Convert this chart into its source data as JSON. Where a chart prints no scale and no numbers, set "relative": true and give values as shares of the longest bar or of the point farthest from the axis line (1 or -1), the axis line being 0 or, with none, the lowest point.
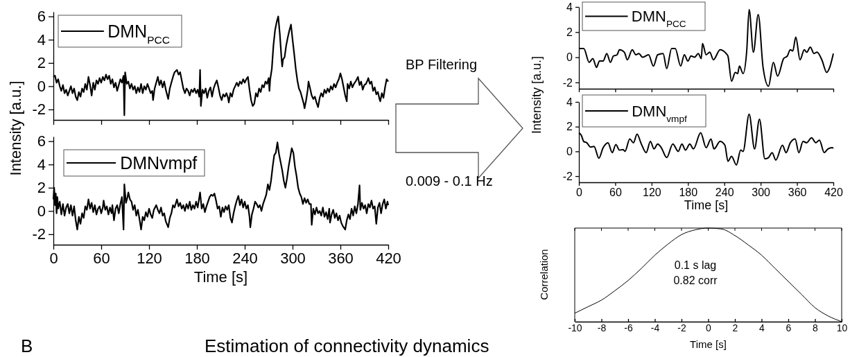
{
  "chart_data": [
    {
      "type": "line",
      "ylabel": "Intensity [a.u.]",
      "xlim": [
        0,
        420
      ],
      "xticks": [
        0,
        60,
        120,
        180,
        240,
        300,
        360,
        420
      ],
      "ylim": [
        -2.9,
        6.4
      ],
      "yticks": [
        -2,
        0,
        2,
        4,
        6
      ],
      "tick_labels": "y",
      "legend": "top left",
      "x": [
        0,
        2,
        4,
        6,
        8,
        10,
        12,
        14,
        16,
        18,
        20,
        22,
        24,
        26,
        28,
        30,
        32,
        34,
        36,
        38,
        40,
        42,
        44,
        46,
        48,
        50,
        52,
        54,
        56,
        58,
        60,
        62,
        64,
        66,
        68,
        70,
        72,
        74,
        76,
        78,
        80,
        82,
        84,
        86,
        88,
        89,
        90,
        92,
        94,
        96,
        98,
        100,
        102,
        104,
        106,
        108,
        110,
        112,
        114,
        116,
        118,
        120,
        122,
        124,
        125,
        127,
        129,
        131,
        133,
        135,
        137,
        139,
        141,
        144,
        146,
        148,
        150,
        152,
        155,
        157,
        159,
        161,
        163,
        165,
        167,
        169,
        171,
        173,
        175,
        177,
        179,
        181,
        183,
        184,
        185,
        187,
        189,
        191,
        193,
        195,
        197,
        199,
        201,
        203,
        205,
        207,
        209,
        211,
        213,
        215,
        217,
        219,
        220,
        222,
        224,
        226,
        228,
        230,
        232,
        234,
        236,
        238,
        240,
        242,
        244,
        246,
        248,
        250,
        252,
        254,
        256,
        258,
        260,
        262,
        264,
        266,
        268,
        270,
        271,
        272,
        274,
        276,
        278,
        280,
        282,
        284,
        286,
        287,
        288,
        290,
        292,
        294,
        296,
        298,
        300,
        302,
        304,
        306,
        308,
        310,
        312,
        314,
        315,
        317,
        319,
        320,
        322,
        324,
        326,
        328,
        330,
        332,
        334,
        336,
        338,
        340,
        342,
        344,
        346,
        348,
        350,
        352,
        354,
        356,
        358,
        360,
        362,
        364,
        366,
        368,
        369,
        371,
        373,
        375,
        377,
        379,
        382,
        384,
        386,
        388,
        390,
        392,
        394,
        395,
        397,
        399,
        401,
        403,
        405,
        407,
        409,
        410,
        412,
        414,
        416,
        418,
        420
      ],
      "series": [
        {
          "name": "DMN$_{PCC}$",
          "color": "#000000",
          "values": [
            0.8,
            0.9,
            0.3,
            0.6,
            0,
            -0.4,
            0.1,
            -0.6,
            -0.3,
            -0.8,
            -0.4,
            0,
            -0.6,
            -0.2,
            -0.9,
            -1.2,
            -0.5,
            -0.9,
            -0.2,
            -0.5,
            0.2,
            -0.3,
            0.8,
            0.1,
            -0.8,
            0.3,
            -0.3,
            0.5,
            0.2,
            0.7,
            0.3,
            0.8,
            0.5,
            1.0,
            0.6,
            0.9,
            0.2,
            0.6,
            -0.1,
            0.3,
            -0.4,
            0.1,
            0.6,
            0.3,
            0.9,
            -2.5,
            1.2,
            0.2,
            0.4,
            -0.2,
            0.2,
            -0.3,
            0,
            -0.6,
            -0.1,
            -0.5,
            0.2,
            -0.6,
            0,
            -0.3,
            0.2,
            -0.2,
            -0.6,
            -0.4,
            -1.2,
            -0.2,
            0.3,
            0.8,
            0.1,
            0.5,
            -0.1,
            0.4,
            -0.3,
            -1.1,
            -0.2,
            0.3,
            0.8,
            1.2,
            1.4,
            1.0,
            1.2,
            0.5,
            -0.2,
            -0.6,
            -0.2,
            -0.4,
            -0.8,
            -0.3,
            -0.5,
            -0.2,
            -0.6,
            -0.3,
            -0.9,
            1.4,
            -1.7,
            -0.3,
            -0.6,
            -0.2,
            -1.0,
            -0.4,
            -0.1,
            -0.9,
            -0.2,
            0.2,
            0.5,
            -0.1,
            -0.8,
            -1.2,
            -0.7,
            -0.9,
            -0.6,
            -1.0,
            -1.4,
            -0.6,
            -0.9,
            -0.3,
            0,
            0.3,
            0,
            0.4,
            0.2,
            0.6,
            0.3,
            0.6,
            0.8,
            -0.3,
            -1.2,
            -1.7,
            -1.5,
            -0.6,
            -0.9,
            -0.2,
            -0.5,
            0.1,
            -0.1,
            0.4,
            0.2,
            0.7,
            -0.4,
            0.6,
            1.5,
            3.5,
            4.8,
            5.5,
            6.0,
            4.5,
            2.5,
            1.7,
            2.3,
            2.5,
            3.5,
            4.2,
            4.8,
            5.3,
            4.0,
            2.8,
            1.5,
            0.5,
            -0.2,
            -0.5,
            -1.0,
            -1.5,
            -1.9,
            -1.2,
            -0.3,
            0.4,
            -0.2,
            -0.8,
            -1.1,
            -0.9,
            -1.4,
            -1.8,
            -1.0,
            -0.6,
            -0.9,
            -0.3,
            -0.6,
            -0.2,
            -0.5,
            0,
            -0.3,
            0.2,
            -0.1,
            0.3,
            0.6,
            1.1,
            0.6,
            -0.1,
            -0.8,
            -1.3,
            0.2,
            -0.2,
            0.4,
            -0.1,
            0.2,
            0.4,
            0.8,
            0.1,
            0.4,
            -0.3,
            0.1,
            0.2,
            0.5,
            0.7,
            0.2,
            0.4,
            -0.4,
            -0.1,
            -0.7,
            -0.5,
            -1.1,
            -1.3,
            -0.6,
            -1.0,
            -0.1,
            0.6,
            0.4
          ]
        }
      ]
    },
    {
      "type": "line",
      "xlabel": "Time [s]",
      "xlim": [
        0,
        420
      ],
      "xticks": [
        0,
        60,
        120,
        180,
        240,
        300,
        360,
        420
      ],
      "ylim": [
        -2.9,
        6.4
      ],
      "yticks": [
        -2,
        0,
        2,
        4,
        6
      ],
      "legend": "top left",
      "x": [
        0,
        1,
        2,
        3,
        4,
        5,
        6,
        8,
        10,
        12,
        14,
        16,
        18,
        20,
        22,
        24,
        26,
        28,
        30,
        32,
        34,
        36,
        38,
        40,
        42,
        44,
        46,
        48,
        50,
        52,
        54,
        56,
        58,
        60,
        62,
        63,
        65,
        67,
        69,
        71,
        73,
        74,
        76,
        78,
        80,
        82,
        84,
        86,
        88,
        89,
        91,
        93,
        94,
        96,
        98,
        100,
        102,
        104,
        106,
        108,
        110,
        112,
        114,
        116,
        118,
        120,
        122,
        124,
        126,
        129,
        131,
        133,
        135,
        137,
        139,
        141,
        144,
        146,
        148,
        150,
        152,
        155,
        157,
        159,
        161,
        163,
        165,
        167,
        169,
        171,
        173,
        175,
        177,
        179,
        181,
        184,
        186,
        188,
        190,
        192,
        194,
        196,
        198,
        200,
        202,
        204,
        206,
        208,
        210,
        212,
        214,
        216,
        218,
        220,
        222,
        224,
        226,
        228,
        230,
        232,
        234,
        236,
        238,
        240,
        242,
        244,
        246,
        247,
        249,
        251,
        253,
        255,
        257,
        259,
        261,
        263,
        265,
        267,
        269,
        271,
        273,
        275,
        277,
        279,
        281,
        283,
        285,
        287,
        289,
        291,
        293,
        295,
        297,
        299,
        301,
        303,
        305,
        307,
        309,
        311,
        313,
        315,
        317,
        319,
        321,
        323,
        324,
        326,
        328,
        330,
        332,
        334,
        336,
        338,
        340,
        342,
        344,
        346,
        347,
        349,
        351,
        353,
        355,
        357,
        359,
        361,
        363,
        366,
        368,
        370,
        372,
        374,
        376,
        378,
        380,
        382,
        384,
        385,
        387,
        389,
        391,
        393,
        395,
        397,
        399,
        401,
        403,
        405,
        407,
        409,
        411,
        413,
        415,
        417,
        419,
        420
      ],
      "series": [
        {
          "name": "DMNvmpf",
          "color": "#000000",
          "values": [
            1.0,
            2.0,
            0.5,
            1.5,
            -0.2,
            1.2,
            0.2,
            0.8,
            -0.3,
            0.6,
            -0.4,
            0.3,
            0.6,
            -0.2,
            0.5,
            -0.4,
            0.4,
            -0.8,
            -1.6,
            -0.5,
            -1.1,
            -0.2,
            -0.6,
            0.4,
            0.1,
            1.0,
            0.2,
            0.7,
            -0.1,
            0.5,
            -0.3,
            0.2,
            0.4,
            -0.2,
            0.3,
            0.9,
            0.1,
            0.4,
            -0.3,
            0.3,
            -0.2,
            0.5,
            -0.8,
            0.2,
            0.5,
            -0.2,
            0.6,
            1.2,
            -1.6,
            2.3,
            0.7,
            1.2,
            1.6,
            1.0,
            0.8,
            0.1,
            0.5,
            -0.4,
            0.1,
            -0.7,
            -1.6,
            -0.5,
            -0.8,
            -0.1,
            -0.5,
            0.2,
            -0.3,
            -0.6,
            0.1,
            0.5,
            0.1,
            -0.2,
            0.3,
            -0.4,
            -0.2,
            -0.9,
            -1.4,
            -0.6,
            -0.2,
            0.5,
            0.3,
            1.0,
            0.4,
            0.7,
            0.2,
            0.5,
            0,
            0.6,
            0.2,
            0.8,
            0.1,
            0.5,
            0.2,
            0.8,
            0.3,
            1.6,
            0.2,
            0.6,
            -0.1,
            0.4,
            0.8,
            1.2,
            1.4,
            1.3,
            1.5,
            0.9,
            0.2,
            0.4,
            -0.5,
            0.3,
            -0.1,
            0.4,
            0.1,
            0.5,
            -0.6,
            -1.0,
            -0.2,
            0.4,
            0.9,
            1.3,
            0.5,
            1.0,
            0.3,
            0.8,
            0.2,
            0.5,
            -0.5,
            -1.4,
            -0.3,
            0.2,
            0.8,
            0.6,
            0.3,
            0.5,
            0,
            0.6,
            1.0,
            1.4,
            2.3,
            1.8,
            2.6,
            3.8,
            4.8,
            5.0,
            5.9,
            4.9,
            4.2,
            3.5,
            2.6,
            2.0,
            2.8,
            3.8,
            4.6,
            5.4,
            5.0,
            3.8,
            3.0,
            2.0,
            1.5,
            1.2,
            0.6,
            1.1,
            0.7,
            1.0,
            0.6,
            0.6,
            -1.2,
            0.2,
            -0.3,
            0.3,
            -0.2,
            0,
            -0.4,
            0.3,
            -0.5,
            -0.1,
            -0.7,
            0.2,
            -1.0,
            -0.3,
            0.1,
            -0.6,
            -0.2,
            -0.8,
            -0.4,
            -1.0,
            -1.3,
            -1.6,
            -0.8,
            -0.3,
            -0.7,
            0.2,
            -0.4,
            0.4,
            -0.2,
            0.6,
            2.2,
            0.1,
            0.7,
            0.2,
            0.5,
            -0.2,
            0.6,
            0.3,
            0.9,
            0.2,
            0.4,
            -1.1,
            0.3,
            0.7,
            -0.2,
            0.6,
            1.0,
            0.2,
            0.8,
            0.5
          ]
        }
      ]
    },
    {
      "type": "line",
      "ylabel": "Intensity [a.u.]",
      "xlim": [
        0,
        420
      ],
      "xticks": [
        0,
        60,
        120,
        180,
        240,
        300,
        360,
        420
      ],
      "ylim": [
        -2.5,
        4
      ],
      "yticks": [
        -2,
        0,
        2,
        4
      ],
      "tick_labels": "y",
      "legend": "top left",
      "x": [
        0,
        8,
        17,
        23,
        29,
        34,
        40,
        46,
        52,
        57,
        63,
        67,
        75,
        80,
        88,
        94,
        99,
        105,
        115,
        123,
        130,
        139,
        145,
        153,
        159,
        168,
        174,
        180,
        185,
        191,
        197,
        202,
        204,
        210,
        216,
        222,
        233,
        243,
        246,
        252,
        258,
        262,
        265,
        271,
        277,
        281,
        288,
        296,
        304,
        313,
        321,
        328,
        338,
        344,
        349,
        353,
        358,
        365,
        372,
        376,
        382,
        388,
        393,
        401,
        409,
        414,
        420
      ],
      "series": [
        {
          "name": "DMN$_{PCC}$",
          "color": "#000000",
          "values": [
            0.7,
            0.7,
            -0.4,
            -0.1,
            -0.8,
            -0.3,
            -0.3,
            0.3,
            -0.4,
            0.1,
            0.2,
            0.6,
            0.4,
            -0.2,
            0.6,
            0.2,
            0.3,
            0,
            0.2,
            -0.7,
            0.2,
            0.3,
            -0.9,
            0.7,
            0.7,
            -0.7,
            0.2,
            -0.3,
            0.1,
            0,
            0.3,
            -0.1,
            1.1,
            0.2,
            0.4,
            -0.2,
            0.6,
            0.3,
            0.1,
            -1.9,
            -1.2,
            -1.3,
            -0.7,
            -1.3,
            0.5,
            3.8,
            0.4,
            3.4,
            -0.8,
            -2.3,
            -0.4,
            -1.5,
            -0.1,
            0.1,
            0.6,
            0.5,
            1.6,
            -0.2,
            0.6,
            0.4,
            0.8,
            0.3,
            0.4,
            -0.2,
            -1.2,
            -0.8,
            0.3
          ]
        }
      ]
    },
    {
      "type": "line",
      "xlabel": "Time [s]",
      "xlim": [
        0,
        420
      ],
      "xticks": [
        0,
        60,
        120,
        180,
        240,
        300,
        360,
        420
      ],
      "ylim": [
        -2.5,
        4
      ],
      "yticks": [
        -2,
        0,
        2,
        4
      ],
      "legend": "top left",
      "x": [
        0,
        4,
        8,
        13,
        19,
        25,
        33,
        40,
        48,
        55,
        61,
        67,
        73,
        76,
        84,
        90,
        96,
        103,
        111,
        118,
        124,
        130,
        136,
        145,
        155,
        164,
        170,
        176,
        183,
        189,
        201,
        210,
        218,
        223,
        233,
        241,
        246,
        252,
        260,
        267,
        271,
        281,
        290,
        298,
        307,
        313,
        319,
        325,
        336,
        342,
        349,
        357,
        363,
        370,
        376,
        384,
        391,
        397,
        405,
        411,
        418,
        420
      ],
      "series": [
        {
          "name": "DMN$_{vmpf}$",
          "color": "#000000",
          "values": [
            1.5,
            1.3,
            0.8,
            0.7,
            0.35,
            0.4,
            -0.55,
            0.3,
            0.7,
            -0.1,
            0.55,
            0.1,
            0.15,
            0,
            1.0,
            0.7,
            1.4,
            0.6,
            -0.1,
            0.8,
            0.2,
            0.6,
            0.3,
            -0.5,
            0.6,
            0,
            0.6,
            0.1,
            0.6,
            0.2,
            1.5,
            0.3,
            1.0,
            0.2,
            0.8,
            0.5,
            -0.8,
            -0.4,
            -1.1,
            0.1,
            0,
            3.0,
            0.2,
            2.6,
            -0.6,
            -0.5,
            -0.1,
            -0.7,
            0.5,
            -0.1,
            0.7,
            1.0,
            -0.1,
            0.8,
            0.7,
            1.1,
            0.7,
            0.9,
            -0.1,
            0.2,
            0.3,
            0.25
          ]
        }
      ]
    },
    {
      "type": "line",
      "relative": true,
      "xlabel": "Time [s]",
      "ylabel": "Correlation",
      "xlim": [
        -10,
        10
      ],
      "xticks": [
        -10,
        -8,
        -6,
        -4,
        -2,
        0,
        2,
        4,
        6,
        8,
        10
      ],
      "annotations": [
        "0.1 s lag",
        "0.82 corr"
      ],
      "x": [
        -10,
        -9,
        -8,
        -7,
        -6,
        -5,
        -4,
        -3,
        -2,
        -1,
        0,
        1,
        2,
        3,
        4,
        5,
        6,
        7,
        8,
        9,
        10
      ],
      "series": [
        {
          "color": "#000000",
          "values": [
            0.09,
            0.16,
            0.23,
            0.33,
            0.44,
            0.57,
            0.71,
            0.83,
            0.93,
            0.98,
            1.0,
            0.99,
            0.92,
            0.82,
            0.71,
            0.57,
            0.43,
            0.29,
            0.15,
            0.06,
            0.0
          ]
        }
      ]
    },
    {
      "type": "other",
      "annotations": [
        "BP Filtering",
        "0.009 - 0.1 Hz",
        "B",
        "Estimation of connectivity dynamics"
      ]
    }
  ]
}
